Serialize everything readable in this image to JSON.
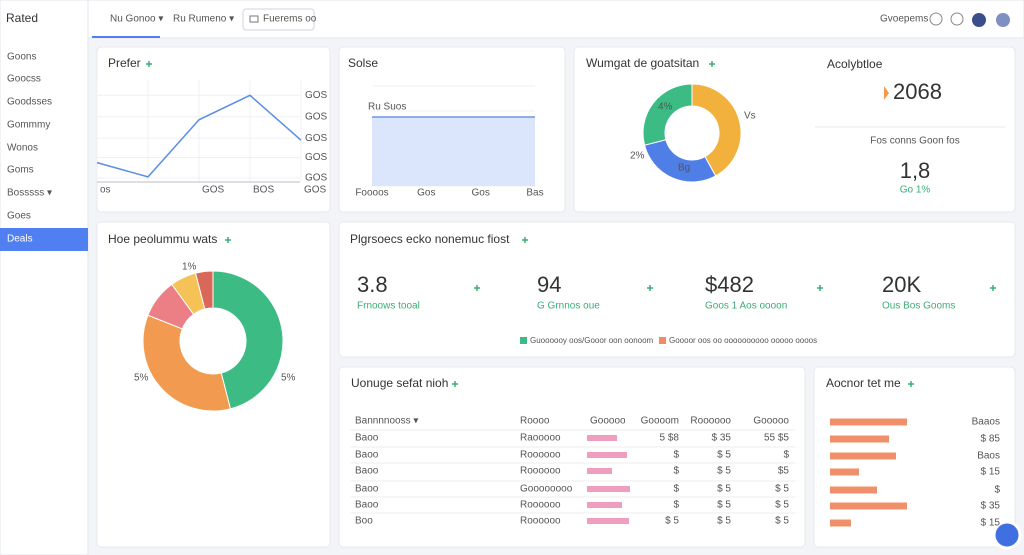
{
  "sidebar": {
    "brand": "Rated",
    "items": [
      "Goons",
      "Goocss",
      "Goodsses",
      "Gommmy",
      "Wonos",
      "Goms",
      "Bosssss ▾",
      "Goes",
      "Deals"
    ],
    "active": 8
  },
  "topbar": {
    "tabs": [
      "Nu Gonoo ▾",
      "Ru Rumeno ▾"
    ],
    "search": "Fuerems oo",
    "user": "Gvoepems"
  },
  "prefer": {
    "title": "Prefer",
    "chart": {
      "type": "line",
      "color": "#5b8ee6",
      "categories": [
        "os",
        null,
        "GOS",
        "BOS",
        "GOS"
      ],
      "values": [
        19,
        5,
        61,
        85,
        41
      ],
      "ylim": [
        0,
        100
      ],
      "yticks": [
        {
          "value": 4,
          "label": "GOS"
        },
        {
          "value": 24,
          "label": "GOS"
        },
        {
          "value": 43,
          "label": "GOS"
        },
        {
          "value": 64,
          "label": "GOS"
        },
        {
          "value": 85,
          "label": "GOS"
        }
      ],
      "grid": true
    }
  },
  "sales": {
    "title": "Solse",
    "chart": {
      "type": "area",
      "color": "#6f95e6",
      "fill": "#dbe5fb",
      "annotation": "Ru Suos",
      "categories": [
        "Foooos",
        "Gos",
        "Gos",
        "Bas"
      ],
      "values": [
        69,
        69,
        69,
        69
      ],
      "ylim": [
        0,
        100
      ],
      "grid": true
    }
  },
  "segments": {
    "title": "Wumgat de goatsitan",
    "chart": {
      "type": "donut",
      "values": [
        42,
        29,
        29
      ],
      "colors": [
        "#f2b13c",
        "#4f7fe6",
        "#3dbb85"
      ],
      "annotations": [
        "4%",
        "Vs",
        "Bg",
        "2%"
      ]
    }
  },
  "analytics": {
    "title": "Acolybtloe",
    "value": "2068",
    "caption": "Fos conns Goon fos",
    "second_value": "1,8",
    "second_caption": "Go 1%"
  },
  "share": {
    "title": "Hoe peolummu wats",
    "chart": {
      "type": "donut",
      "values": [
        46,
        35,
        9,
        6,
        4
      ],
      "colors": [
        "#3dbb85",
        "#f29a4f",
        "#ec7f86",
        "#f4c256",
        "#d9675a"
      ],
      "annotations": [
        "1%",
        "5%",
        "5%"
      ]
    }
  },
  "kpis": {
    "title": "Plgrsoecs ecko nonemuc fiost",
    "items": [
      {
        "value": "3.8",
        "label": "Frnoows tooal"
      },
      {
        "value": "94",
        "label": "G Grnnos oue"
      },
      {
        "value": "$482",
        "label": "Goos 1 Aos oooon"
      },
      {
        "value": "20K",
        "label": "Ous Bos Gooms"
      }
    ],
    "legend": [
      {
        "name": "Guoooooy oos/Gooor oon oonoom",
        "color": "#3dbb85"
      },
      {
        "name": "Goooor oos oo oooooooooo ooooo oooos",
        "color": "#f08b63"
      }
    ]
  },
  "table": {
    "title": "Uonuge sefat nioh",
    "bar_color": "#ee9fbf",
    "header": [
      "Bannnnooss ▾",
      "Roooo",
      "Gooooo",
      "Goooom",
      "Roooooo",
      "Gooooo"
    ],
    "rows": [
      [
        "Baoo",
        "Raooooo",
        30,
        "5 $8",
        "$ 35",
        "55 $5"
      ],
      [
        "Baoo",
        "Roooooo",
        40,
        "$",
        "$ 5",
        "$"
      ],
      [
        "Baoo",
        "Roooooo",
        25,
        "$",
        "$ 5",
        "$5"
      ],
      [
        "Baoo",
        "Goooooooo",
        43,
        "$",
        "$ 5",
        "$ 5"
      ],
      [
        "Baoo",
        "Roooooo",
        35,
        "$",
        "$ 5",
        "$ 5"
      ],
      [
        "Boo",
        "Roooooo",
        42,
        "$ 5",
        "$ 5",
        "$ 5"
      ]
    ]
  },
  "ranking": {
    "title": "Aocnor tet me",
    "chart": {
      "type": "hbar",
      "color": "#f0906a",
      "values": [
        77,
        59,
        66,
        29,
        47,
        77,
        21
      ],
      "xlim": [
        0,
        100
      ],
      "row_labels": [
        "Baaos",
        "$ 85",
        "Baos",
        "$ 15",
        "$",
        "$ 35",
        "$ 15"
      ]
    }
  }
}
